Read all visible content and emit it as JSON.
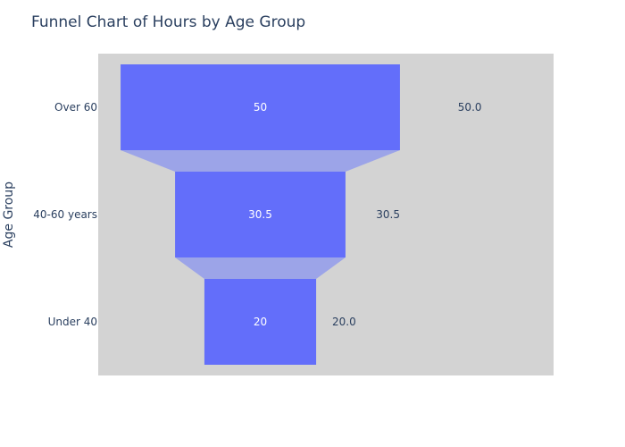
{
  "chart_data": {
    "type": "funnel",
    "title": "Funnel Chart of Hours by Age Group",
    "ylabel": "Age Group",
    "xlabel": "",
    "categories": [
      "Over 60",
      "40-60 years",
      "Under 40"
    ],
    "values": [
      50,
      30.5,
      20
    ],
    "inside_labels": [
      "50",
      "30.5",
      "20"
    ],
    "outside_labels": [
      "50.0",
      "30.5",
      "20.0"
    ],
    "x_range_max": 81.5,
    "grid": false,
    "colors": {
      "bar": "#636efa",
      "connector": "#9ca4e8",
      "plot_bg": "#d3d3d3",
      "text": "#2a3f5f",
      "inside_text": "#ffffff"
    }
  }
}
